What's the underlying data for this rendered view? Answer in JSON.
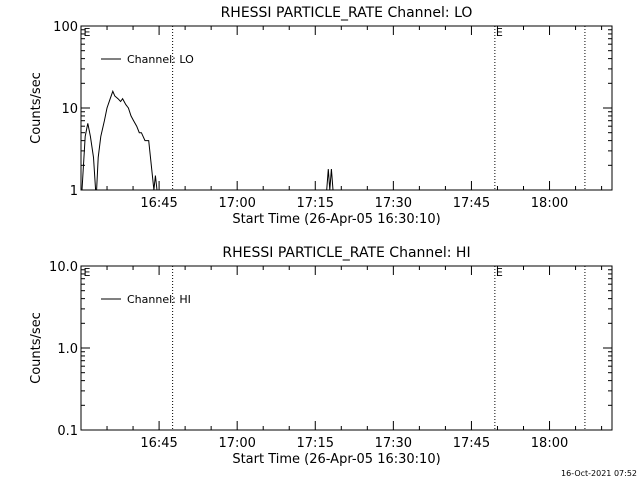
{
  "timestamp": "16-Oct-2021 07:52",
  "chart_data": [
    {
      "type": "line",
      "title": "RHESSI PARTICLE_RATE Channel: LO",
      "xlabel": "Start Time (26-Apr-05 16:30:10)",
      "ylabel": "Counts/sec",
      "yscale": "log",
      "ylim": [
        1,
        100
      ],
      "yticks": [
        "1",
        "10",
        "100"
      ],
      "xlim_minutes": [
        0,
        102
      ],
      "xticks": [
        {
          "label": "16:45",
          "minute": 15
        },
        {
          "label": "17:00",
          "minute": 30
        },
        {
          "label": "17:15",
          "minute": 45
        },
        {
          "label": "17:30",
          "minute": 60
        },
        {
          "label": "17:45",
          "minute": 75
        },
        {
          "label": "18:00",
          "minute": 90
        }
      ],
      "vlines_minutes": [
        17.6,
        79.5,
        96.8
      ],
      "markers": [
        {
          "text": "E",
          "minute": 0.3
        },
        {
          "text": "E",
          "minute": 79.5
        }
      ],
      "legend": {
        "label": "Channel: LO",
        "position": "top-left"
      },
      "grid": false,
      "series": [
        {
          "name": "Channel: LO",
          "points": [
            [
              0.2,
              1.0
            ],
            [
              0.8,
              4.5
            ],
            [
              1.3,
              6.5
            ],
            [
              1.8,
              4.5
            ],
            [
              2.4,
              2.5
            ],
            [
              2.8,
              1.0
            ],
            [
              3.0,
              1.0
            ],
            [
              3.3,
              2.5
            ],
            [
              3.8,
              4.5
            ],
            [
              4.5,
              7
            ],
            [
              5.0,
              10
            ],
            [
              5.6,
              13
            ],
            [
              6.1,
              16
            ],
            [
              6.5,
              14
            ],
            [
              7.1,
              13
            ],
            [
              7.6,
              12
            ],
            [
              8.0,
              13
            ],
            [
              8.6,
              11
            ],
            [
              9.1,
              10
            ],
            [
              9.6,
              8
            ],
            [
              10.1,
              7
            ],
            [
              10.7,
              6
            ],
            [
              11.2,
              5
            ],
            [
              11.6,
              5
            ],
            [
              12.3,
              4
            ],
            [
              13.0,
              4
            ],
            [
              13.5,
              2
            ],
            [
              14.0,
              1.0
            ],
            [
              14.3,
              1.5
            ],
            [
              14.6,
              1.0
            ],
            [
              47.2,
              1.0
            ],
            [
              47.5,
              1.8
            ],
            [
              47.8,
              1.0
            ],
            [
              48.1,
              1.8
            ],
            [
              48.4,
              1.0
            ]
          ]
        }
      ]
    },
    {
      "type": "line",
      "title": "RHESSI PARTICLE_RATE Channel: HI",
      "xlabel": "Start Time (26-Apr-05 16:30:10)",
      "ylabel": "Counts/sec",
      "yscale": "log",
      "ylim": [
        0.1,
        10
      ],
      "yticks": [
        "0.1",
        "1.0",
        "10.0"
      ],
      "xlim_minutes": [
        0,
        102
      ],
      "xticks": [
        {
          "label": "16:45",
          "minute": 15
        },
        {
          "label": "17:00",
          "minute": 30
        },
        {
          "label": "17:15",
          "minute": 45
        },
        {
          "label": "17:30",
          "minute": 60
        },
        {
          "label": "17:45",
          "minute": 75
        },
        {
          "label": "18:00",
          "minute": 90
        }
      ],
      "vlines_minutes": [
        17.6,
        79.5,
        96.8
      ],
      "markers": [
        {
          "text": "E",
          "minute": 0.3
        },
        {
          "text": "E",
          "minute": 79.5
        }
      ],
      "legend": {
        "label": "Channel: HI",
        "position": "top-left"
      },
      "grid": false,
      "series": [
        {
          "name": "Channel: HI",
          "points": []
        }
      ]
    }
  ]
}
